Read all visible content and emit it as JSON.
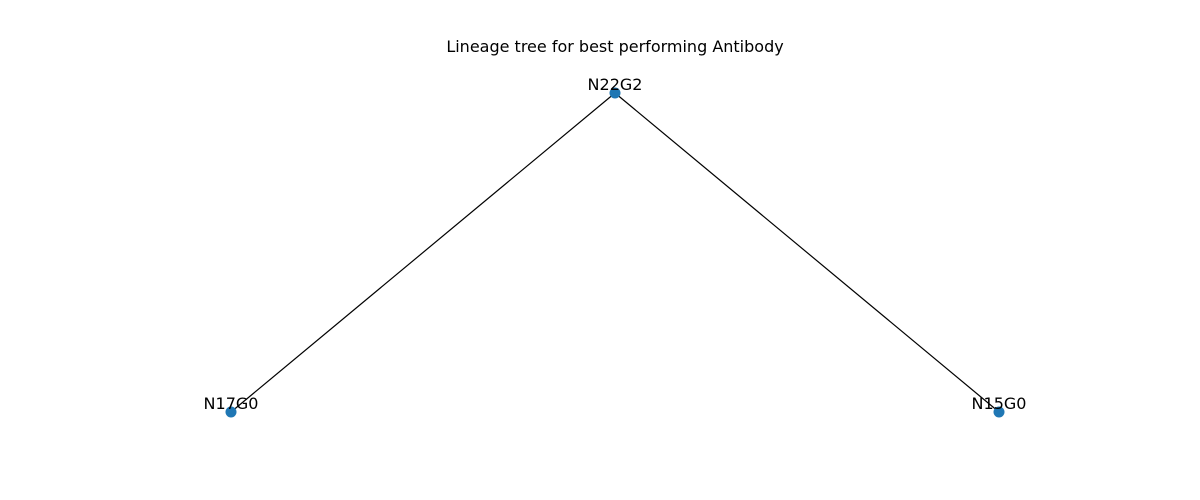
{
  "figure": {
    "title": "Lineage tree for best performing Antibody"
  },
  "tree": {
    "node_color": "#1f77b4",
    "edge_color": "#000000",
    "nodes": [
      {
        "id": "N22G2",
        "label": "N22G2"
      },
      {
        "id": "N17G0",
        "label": "N17G0"
      },
      {
        "id": "N15G0",
        "label": "N15G0"
      }
    ],
    "edges": [
      {
        "from": "N22G2",
        "to": "N17G0"
      },
      {
        "from": "N22G2",
        "to": "N15G0"
      }
    ]
  }
}
